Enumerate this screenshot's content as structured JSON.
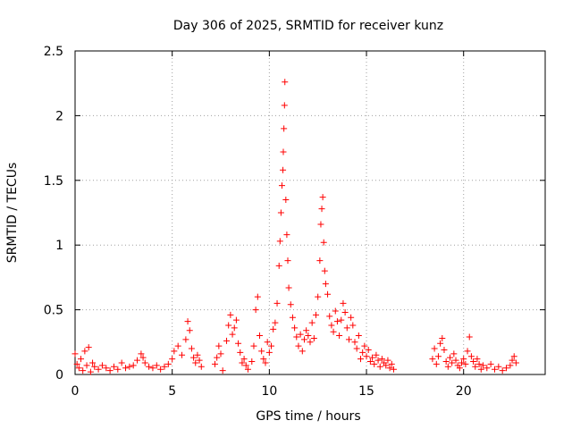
{
  "chart_data": {
    "type": "scatter",
    "title": "Day 306 of 2025, SRMTID for receiver kunz",
    "xlabel": "GPS time / hours",
    "ylabel": "SRMTID / TECUs",
    "xlim": [
      0,
      24.2
    ],
    "ylim": [
      0,
      2.5
    ],
    "x_ticks": [
      0,
      5,
      10,
      15,
      20
    ],
    "x_tick_labels": [
      "0",
      "5",
      "10",
      "15",
      "20"
    ],
    "y_ticks": [
      0,
      0.5,
      1,
      1.5,
      2,
      2.5
    ],
    "y_tick_labels": [
      "0",
      "0.5",
      "1",
      "1.5",
      "2",
      "2.5"
    ],
    "grid": true,
    "marker": "plus",
    "color": "#ff0000",
    "series": [
      {
        "name": "SRMTID",
        "points": [
          [
            0.0,
            0.16
          ],
          [
            0.1,
            0.08
          ],
          [
            0.2,
            0.05
          ],
          [
            0.3,
            0.12
          ],
          [
            0.4,
            0.03
          ],
          [
            0.5,
            0.18
          ],
          [
            0.6,
            0.07
          ],
          [
            0.7,
            0.21
          ],
          [
            0.8,
            0.02
          ],
          [
            0.9,
            0.09
          ],
          [
            1.0,
            0.06
          ],
          [
            1.2,
            0.04
          ],
          [
            1.4,
            0.07
          ],
          [
            1.6,
            0.05
          ],
          [
            1.8,
            0.03
          ],
          [
            2.0,
            0.06
          ],
          [
            2.2,
            0.04
          ],
          [
            2.4,
            0.09
          ],
          [
            2.6,
            0.05
          ],
          [
            2.8,
            0.06
          ],
          [
            3.0,
            0.07
          ],
          [
            3.2,
            0.11
          ],
          [
            3.4,
            0.16
          ],
          [
            3.5,
            0.13
          ],
          [
            3.6,
            0.09
          ],
          [
            3.8,
            0.06
          ],
          [
            4.0,
            0.05
          ],
          [
            4.2,
            0.07
          ],
          [
            4.4,
            0.04
          ],
          [
            4.6,
            0.06
          ],
          [
            4.8,
            0.08
          ],
          [
            5.0,
            0.12
          ],
          [
            5.1,
            0.18
          ],
          [
            5.3,
            0.22
          ],
          [
            5.5,
            0.15
          ],
          [
            5.7,
            0.27
          ],
          [
            5.8,
            0.41
          ],
          [
            5.9,
            0.34
          ],
          [
            6.0,
            0.2
          ],
          [
            6.1,
            0.13
          ],
          [
            6.2,
            0.09
          ],
          [
            6.3,
            0.15
          ],
          [
            6.4,
            0.11
          ],
          [
            6.5,
            0.06
          ],
          [
            7.2,
            0.08
          ],
          [
            7.3,
            0.13
          ],
          [
            7.4,
            0.22
          ],
          [
            7.5,
            0.16
          ],
          [
            7.6,
            0.03
          ],
          [
            7.8,
            0.26
          ],
          [
            7.9,
            0.38
          ],
          [
            8.0,
            0.46
          ],
          [
            8.1,
            0.31
          ],
          [
            8.2,
            0.36
          ],
          [
            8.3,
            0.42
          ],
          [
            8.4,
            0.24
          ],
          [
            8.5,
            0.17
          ],
          [
            8.6,
            0.09
          ],
          [
            8.7,
            0.12
          ],
          [
            8.8,
            0.07
          ],
          [
            8.9,
            0.04
          ],
          [
            9.1,
            0.1
          ],
          [
            9.2,
            0.22
          ],
          [
            9.3,
            0.5
          ],
          [
            9.4,
            0.6
          ],
          [
            9.5,
            0.3
          ],
          [
            9.6,
            0.18
          ],
          [
            9.7,
            0.12
          ],
          [
            9.8,
            0.09
          ],
          [
            9.9,
            0.25
          ],
          [
            10.0,
            0.17
          ],
          [
            10.1,
            0.22
          ],
          [
            10.2,
            0.35
          ],
          [
            10.3,
            0.4
          ],
          [
            10.4,
            0.55
          ],
          [
            10.5,
            0.84
          ],
          [
            10.55,
            1.03
          ],
          [
            10.6,
            1.25
          ],
          [
            10.65,
            1.46
          ],
          [
            10.7,
            1.58
          ],
          [
            10.72,
            1.72
          ],
          [
            10.75,
            1.9
          ],
          [
            10.78,
            2.08
          ],
          [
            10.8,
            2.26
          ],
          [
            10.85,
            1.35
          ],
          [
            10.9,
            1.08
          ],
          [
            10.95,
            0.88
          ],
          [
            11.0,
            0.67
          ],
          [
            11.1,
            0.54
          ],
          [
            11.2,
            0.44
          ],
          [
            11.3,
            0.36
          ],
          [
            11.4,
            0.29
          ],
          [
            11.5,
            0.22
          ],
          [
            11.6,
            0.31
          ],
          [
            11.7,
            0.18
          ],
          [
            11.8,
            0.27
          ],
          [
            11.9,
            0.34
          ],
          [
            12.0,
            0.3
          ],
          [
            12.1,
            0.25
          ],
          [
            12.2,
            0.4
          ],
          [
            12.3,
            0.28
          ],
          [
            12.4,
            0.46
          ],
          [
            12.5,
            0.6
          ],
          [
            12.6,
            0.88
          ],
          [
            12.65,
            1.16
          ],
          [
            12.7,
            1.28
          ],
          [
            12.75,
            1.37
          ],
          [
            12.8,
            1.02
          ],
          [
            12.85,
            0.8
          ],
          [
            12.9,
            0.7
          ],
          [
            13.0,
            0.62
          ],
          [
            13.1,
            0.45
          ],
          [
            13.2,
            0.38
          ],
          [
            13.3,
            0.33
          ],
          [
            13.4,
            0.49
          ],
          [
            13.5,
            0.41
          ],
          [
            13.6,
            0.3
          ],
          [
            13.7,
            0.42
          ],
          [
            13.8,
            0.55
          ],
          [
            13.9,
            0.48
          ],
          [
            14.0,
            0.36
          ],
          [
            14.1,
            0.27
          ],
          [
            14.2,
            0.44
          ],
          [
            14.3,
            0.38
          ],
          [
            14.4,
            0.25
          ],
          [
            14.5,
            0.2
          ],
          [
            14.6,
            0.3
          ],
          [
            14.7,
            0.12
          ],
          [
            14.8,
            0.17
          ],
          [
            14.9,
            0.22
          ],
          [
            15.0,
            0.14
          ],
          [
            15.1,
            0.19
          ],
          [
            15.2,
            0.1
          ],
          [
            15.3,
            0.13
          ],
          [
            15.4,
            0.08
          ],
          [
            15.5,
            0.15
          ],
          [
            15.6,
            0.11
          ],
          [
            15.7,
            0.06
          ],
          [
            15.8,
            0.12
          ],
          [
            15.9,
            0.09
          ],
          [
            16.0,
            0.07
          ],
          [
            16.1,
            0.11
          ],
          [
            16.2,
            0.05
          ],
          [
            16.3,
            0.08
          ],
          [
            16.4,
            0.04
          ],
          [
            18.4,
            0.12
          ],
          [
            18.5,
            0.2
          ],
          [
            18.6,
            0.08
          ],
          [
            18.7,
            0.14
          ],
          [
            18.8,
            0.24
          ],
          [
            18.9,
            0.28
          ],
          [
            19.0,
            0.19
          ],
          [
            19.1,
            0.1
          ],
          [
            19.2,
            0.06
          ],
          [
            19.3,
            0.13
          ],
          [
            19.4,
            0.09
          ],
          [
            19.5,
            0.16
          ],
          [
            19.6,
            0.11
          ],
          [
            19.7,
            0.07
          ],
          [
            19.8,
            0.05
          ],
          [
            19.9,
            0.09
          ],
          [
            20.0,
            0.12
          ],
          [
            20.1,
            0.08
          ],
          [
            20.2,
            0.18
          ],
          [
            20.3,
            0.29
          ],
          [
            20.4,
            0.14
          ],
          [
            20.5,
            0.1
          ],
          [
            20.6,
            0.06
          ],
          [
            20.7,
            0.12
          ],
          [
            20.8,
            0.08
          ],
          [
            20.9,
            0.04
          ],
          [
            21.0,
            0.07
          ],
          [
            21.2,
            0.05
          ],
          [
            21.4,
            0.08
          ],
          [
            21.6,
            0.04
          ],
          [
            21.8,
            0.06
          ],
          [
            22.0,
            0.03
          ],
          [
            22.2,
            0.05
          ],
          [
            22.4,
            0.07
          ],
          [
            22.5,
            0.11
          ],
          [
            22.6,
            0.14
          ],
          [
            22.7,
            0.09
          ]
        ]
      }
    ]
  }
}
